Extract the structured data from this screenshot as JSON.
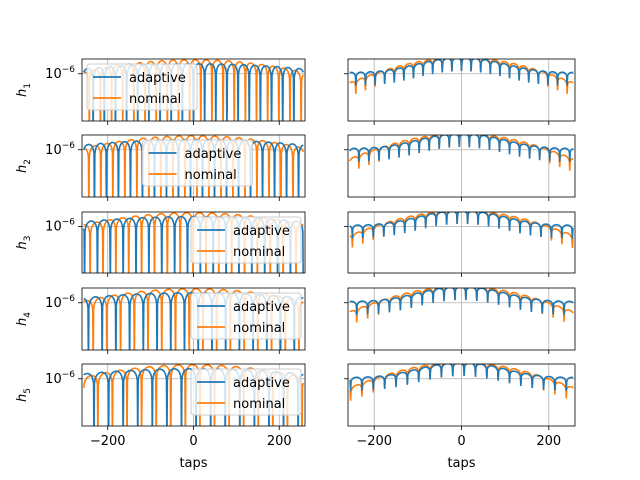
{
  "chart_data": {
    "type": "line",
    "layout": "5 rows x 2 columns of subplots",
    "xlabel": "taps",
    "yscale": "log",
    "y_tick_label": "10^-6",
    "y_tick_value": 1e-06,
    "x_ticks": [
      -200,
      0,
      200
    ],
    "x_range": [
      -260,
      260
    ],
    "grid": true,
    "left_column_legend": true,
    "series_colors": {
      "adaptive": "#1f77b4",
      "nominal": "#ff7f0e"
    },
    "legend_labels": [
      "adaptive",
      "nominal"
    ],
    "rows": [
      {
        "ylabel": "h",
        "sub": "1",
        "legend_position": "upper-left"
      },
      {
        "ylabel": "h",
        "sub": "2",
        "legend_position": "upper-center"
      },
      {
        "ylabel": "h",
        "sub": "3",
        "legend_position": "upper-right"
      },
      {
        "ylabel": "h",
        "sub": "4",
        "legend_position": "upper-right"
      },
      {
        "ylabel": "h",
        "sub": "5",
        "legend_position": "upper-right"
      }
    ],
    "description_series": {
      "adaptive": "oscillating filter-tap magnitudes with deep nulls, envelope roughly flat around 1e-6 to 3e-6 with a peak near tap 0",
      "nominal": "oscillating filter-tap magnitudes peaking near tap 0 and decaying toward both ends"
    }
  }
}
